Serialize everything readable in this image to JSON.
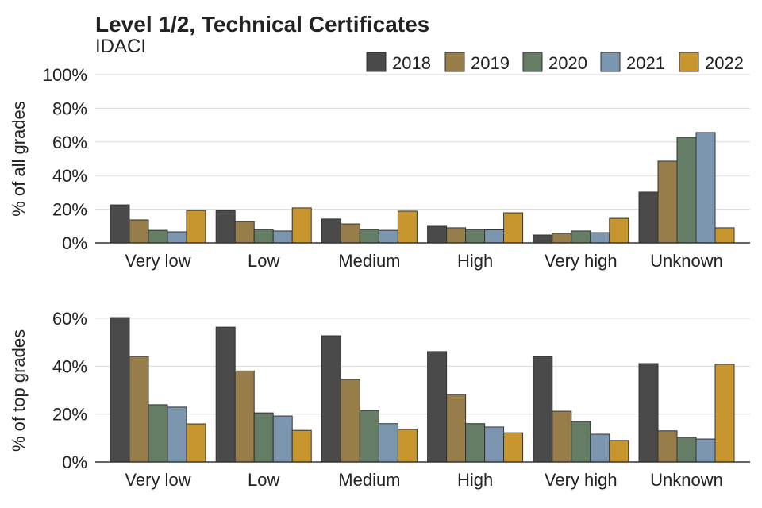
{
  "chart_data": [
    {
      "type": "bar",
      "title": "Level 1/2, Technical Certificates",
      "subtitle": "IDACI",
      "ylabel": "% of all grades",
      "ylim": [
        0,
        100
      ],
      "yticks": [
        0,
        20,
        40,
        60,
        80,
        100
      ],
      "ytick_labels": [
        "0%",
        "20%",
        "40%",
        "60%",
        "80%",
        "100%"
      ],
      "grid": true,
      "legend_position": "top-right",
      "categories": [
        "Very low",
        "Low",
        "Medium",
        "High",
        "Very high",
        "Unknown"
      ],
      "series": [
        {
          "name": "2018",
          "color": "#4a4a4a",
          "values": [
            22.6,
            19.3,
            14.2,
            9.9,
            4.7,
            30.2
          ]
        },
        {
          "name": "2019",
          "color": "#967d4a",
          "values": [
            13.7,
            12.7,
            11.3,
            9.0,
            5.7,
            48.6
          ]
        },
        {
          "name": "2020",
          "color": "#647d64",
          "values": [
            7.5,
            8.0,
            8.0,
            8.0,
            7.1,
            62.7
          ]
        },
        {
          "name": "2021",
          "color": "#7c96b0",
          "values": [
            6.6,
            7.1,
            7.5,
            7.8,
            6.1,
            65.6
          ]
        },
        {
          "name": "2022",
          "color": "#c8962f",
          "values": [
            19.3,
            20.8,
            18.9,
            17.9,
            14.6,
            9.0
          ]
        }
      ]
    },
    {
      "type": "bar",
      "ylabel": "% of top grades",
      "ylim": [
        0,
        65
      ],
      "yticks": [
        0,
        20,
        40,
        60
      ],
      "ytick_labels": [
        "0%",
        "20%",
        "40%",
        "60%"
      ],
      "grid": true,
      "categories": [
        "Very low",
        "Low",
        "Medium",
        "High",
        "Very high",
        "Unknown"
      ],
      "series": [
        {
          "name": "2018",
          "color": "#4a4a4a",
          "values": [
            60.3,
            56.3,
            52.7,
            46.1,
            44.1,
            41.1
          ]
        },
        {
          "name": "2019",
          "color": "#967d4a",
          "values": [
            44.1,
            38.0,
            34.5,
            28.2,
            21.2,
            13.0
          ]
        },
        {
          "name": "2020",
          "color": "#647d64",
          "values": [
            23.9,
            20.5,
            21.5,
            16.0,
            16.9,
            10.3
          ]
        },
        {
          "name": "2021",
          "color": "#7c96b0",
          "values": [
            22.9,
            19.2,
            16.0,
            14.6,
            11.6,
            9.6
          ]
        },
        {
          "name": "2022",
          "color": "#c8962f",
          "values": [
            15.9,
            13.2,
            13.6,
            12.2,
            9.0,
            40.8
          ]
        }
      ]
    }
  ]
}
